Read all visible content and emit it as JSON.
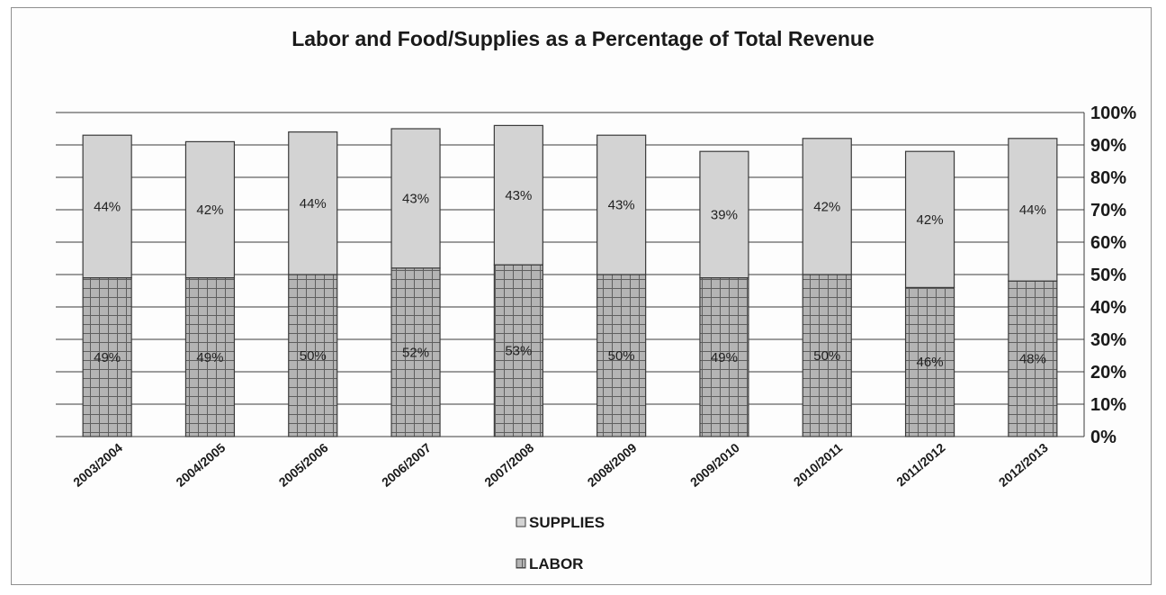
{
  "chart_data": {
    "type": "bar",
    "stacked": true,
    "title": "Labor and Food/Supplies as a Percentage of Total Revenue",
    "categories": [
      "2003/2004",
      "2004/2005",
      "2005/2006",
      "2006/2007",
      "2007/2008",
      "2008/2009",
      "2009/2010",
      "2010/2011",
      "2011/2012",
      "2012/2013"
    ],
    "series": [
      {
        "name": "LABOR",
        "values": [
          49,
          49,
          50,
          52,
          53,
          50,
          49,
          50,
          46,
          48
        ],
        "labels": [
          "49%",
          "49%",
          "50%",
          "52%",
          "53%",
          "50%",
          "49%",
          "50%",
          "46%",
          "48%"
        ],
        "color": "#a9a9a9",
        "pattern": "grid"
      },
      {
        "name": "SUPPLIES",
        "values": [
          44,
          42,
          44,
          43,
          43,
          43,
          39,
          42,
          42,
          44
        ],
        "labels": [
          "44%",
          "42%",
          "44%",
          "43%",
          "43%",
          "43%",
          "39%",
          "42%",
          "42%",
          "44%"
        ],
        "color": "#d3d3d3",
        "pattern": "solid"
      }
    ],
    "ylim": [
      0,
      100
    ],
    "yticks": [
      0,
      10,
      20,
      30,
      40,
      50,
      60,
      70,
      80,
      90,
      100
    ],
    "yticklabels": [
      "0%",
      "10%",
      "20%",
      "30%",
      "40%",
      "50%",
      "60%",
      "70%",
      "80%",
      "90%",
      "100%"
    ],
    "y_axis_side": "right",
    "grid": true,
    "legend": {
      "placement": "bottom",
      "order": [
        "SUPPLIES",
        "LABOR"
      ]
    }
  }
}
